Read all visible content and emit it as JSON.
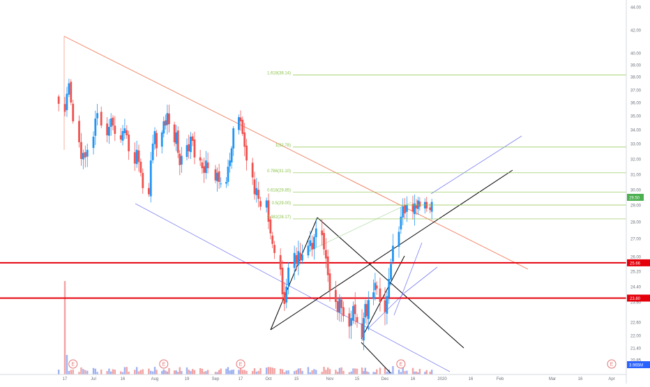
{
  "chart_data": {
    "type": "candlestick",
    "title": "",
    "ylim": [
      19.8,
      44.6
    ],
    "price_axis_ticks": [
      "44.00",
      "42.00",
      "40.00",
      "39.00",
      "38.00",
      "37.00",
      "36.00",
      "35.00",
      "34.00",
      "33.00",
      "32.00",
      "31.00",
      "30.00",
      "29.00",
      "28.00",
      "27.00",
      "26.00",
      "25.20",
      "24.40",
      "23.60",
      "22.60",
      "22.00",
      "21.40",
      "20.85"
    ],
    "time_axis_ticks": [
      {
        "label": "17",
        "date": "2019-06-17"
      },
      {
        "label": "Jul",
        "date": "2019-07-01"
      },
      {
        "label": "16",
        "date": "2019-07-16"
      },
      {
        "label": "Aug",
        "date": "2019-08-01"
      },
      {
        "label": "19",
        "date": "2019-08-19"
      },
      {
        "label": "Sep",
        "date": "2019-09-03"
      },
      {
        "label": "17",
        "date": "2019-09-17"
      },
      {
        "label": "Oct",
        "date": "2019-10-01"
      },
      {
        "label": "15",
        "date": "2019-10-15"
      },
      {
        "label": "Nov",
        "date": "2019-11-01"
      },
      {
        "label": "15",
        "date": "2019-11-15"
      },
      {
        "label": "Dec",
        "date": "2019-12-02"
      },
      {
        "label": "16",
        "date": "2019-12-16"
      },
      {
        "label": "2020",
        "date": "2020-01-02"
      },
      {
        "label": "16",
        "date": "2020-01-16"
      },
      {
        "label": "Feb",
        "date": "2020-02-03"
      },
      {
        "label": "Mar",
        "date": "2020-03-02"
      },
      {
        "label": "16",
        "date": "2020-03-16"
      },
      {
        "label": "Apr",
        "date": "2020-04-01"
      }
    ],
    "price_series": [
      {
        "date": "2019-06-14",
        "close": 35.9
      },
      {
        "date": "2019-06-17",
        "close": 35.3
      },
      {
        "date": "2019-06-18",
        "close": 36.7
      },
      {
        "date": "2019-06-19",
        "close": 37.5
      },
      {
        "date": "2019-06-20",
        "close": 36.0
      },
      {
        "date": "2019-06-21",
        "close": 34.6
      },
      {
        "date": "2019-06-24",
        "close": 33.1
      },
      {
        "date": "2019-06-25",
        "close": 32.0
      },
      {
        "date": "2019-06-26",
        "close": 32.4
      },
      {
        "date": "2019-06-27",
        "close": 32.1
      },
      {
        "date": "2019-06-28",
        "close": 32.6
      },
      {
        "date": "2019-07-01",
        "close": 33.5
      },
      {
        "date": "2019-07-02",
        "close": 34.8
      },
      {
        "date": "2019-07-03",
        "close": 35.2
      },
      {
        "date": "2019-07-05",
        "close": 34.3
      },
      {
        "date": "2019-07-08",
        "close": 33.6
      },
      {
        "date": "2019-07-09",
        "close": 34.2
      },
      {
        "date": "2019-07-10",
        "close": 34.8
      },
      {
        "date": "2019-07-11",
        "close": 34.3
      },
      {
        "date": "2019-07-12",
        "close": 33.7
      },
      {
        "date": "2019-07-15",
        "close": 33.3
      },
      {
        "date": "2019-07-16",
        "close": 33.9
      },
      {
        "date": "2019-07-17",
        "close": 34.1
      },
      {
        "date": "2019-07-18",
        "close": 33.6
      },
      {
        "date": "2019-07-19",
        "close": 32.5
      },
      {
        "date": "2019-07-22",
        "close": 31.7
      },
      {
        "date": "2019-07-23",
        "close": 32.6
      },
      {
        "date": "2019-07-24",
        "close": 31.8
      },
      {
        "date": "2019-07-25",
        "close": 31.1
      },
      {
        "date": "2019-07-26",
        "close": 30.1
      },
      {
        "date": "2019-07-29",
        "close": 29.7
      },
      {
        "date": "2019-07-30",
        "close": 31.9
      },
      {
        "date": "2019-07-31",
        "close": 33.0
      },
      {
        "date": "2019-08-01",
        "close": 33.9
      },
      {
        "date": "2019-08-02",
        "close": 32.7
      },
      {
        "date": "2019-08-05",
        "close": 33.8
      },
      {
        "date": "2019-08-06",
        "close": 34.6
      },
      {
        "date": "2019-08-07",
        "close": 34.3
      },
      {
        "date": "2019-08-08",
        "close": 35.2
      },
      {
        "date": "2019-08-09",
        "close": 34.4
      },
      {
        "date": "2019-08-12",
        "close": 33.1
      },
      {
        "date": "2019-08-13",
        "close": 33.8
      },
      {
        "date": "2019-08-14",
        "close": 32.4
      },
      {
        "date": "2019-08-15",
        "close": 31.6
      },
      {
        "date": "2019-08-16",
        "close": 32.2
      },
      {
        "date": "2019-08-19",
        "close": 32.9
      },
      {
        "date": "2019-08-20",
        "close": 32.5
      },
      {
        "date": "2019-08-21",
        "close": 33.5
      },
      {
        "date": "2019-08-22",
        "close": 33.2
      },
      {
        "date": "2019-08-23",
        "close": 32.1
      },
      {
        "date": "2019-08-26",
        "close": 31.9
      },
      {
        "date": "2019-08-27",
        "close": 31.4
      },
      {
        "date": "2019-08-28",
        "close": 31.1
      },
      {
        "date": "2019-08-29",
        "close": 31.9
      },
      {
        "date": "2019-08-30",
        "close": 31.4
      },
      {
        "date": "2019-09-03",
        "close": 30.6
      },
      {
        "date": "2019-09-04",
        "close": 31.1
      },
      {
        "date": "2019-09-05",
        "close": 30.5
      },
      {
        "date": "2019-09-06",
        "close": 30.4
      },
      {
        "date": "2019-09-09",
        "close": 30.5
      },
      {
        "date": "2019-09-10",
        "close": 31.5
      },
      {
        "date": "2019-09-11",
        "close": 31.9
      },
      {
        "date": "2019-09-12",
        "close": 32.7
      },
      {
        "date": "2019-09-13",
        "close": 34.1
      },
      {
        "date": "2019-09-16",
        "close": 34.9
      },
      {
        "date": "2019-09-17",
        "close": 34.6
      },
      {
        "date": "2019-09-18",
        "close": 33.7
      },
      {
        "date": "2019-09-19",
        "close": 32.8
      },
      {
        "date": "2019-09-20",
        "close": 31.9
      },
      {
        "date": "2019-09-23",
        "close": 30.8
      },
      {
        "date": "2019-09-24",
        "close": 29.7
      },
      {
        "date": "2019-09-25",
        "close": 30.1
      },
      {
        "date": "2019-09-26",
        "close": 29.4
      },
      {
        "date": "2019-09-27",
        "close": 28.9
      },
      {
        "date": "2019-09-30",
        "close": 29.3
      },
      {
        "date": "2019-10-01",
        "close": 28.0
      },
      {
        "date": "2019-10-02",
        "close": 27.3
      },
      {
        "date": "2019-10-03",
        "close": 26.7
      },
      {
        "date": "2019-10-04",
        "close": 26.2
      },
      {
        "date": "2019-10-07",
        "close": 25.3
      },
      {
        "date": "2019-10-08",
        "close": 24.0
      },
      {
        "date": "2019-10-09",
        "close": 23.5
      },
      {
        "date": "2019-10-10",
        "close": 24.4
      },
      {
        "date": "2019-10-11",
        "close": 25.4
      },
      {
        "date": "2019-10-14",
        "close": 26.2
      },
      {
        "date": "2019-10-15",
        "close": 25.6
      },
      {
        "date": "2019-10-16",
        "close": 26.3
      },
      {
        "date": "2019-10-17",
        "close": 25.8
      },
      {
        "date": "2019-10-18",
        "close": 26.1
      },
      {
        "date": "2019-10-21",
        "close": 26.6
      },
      {
        "date": "2019-10-22",
        "close": 26.9
      },
      {
        "date": "2019-10-23",
        "close": 26.4
      },
      {
        "date": "2019-10-24",
        "close": 27.1
      },
      {
        "date": "2019-10-25",
        "close": 27.6
      },
      {
        "date": "2019-10-28",
        "close": 27.2
      },
      {
        "date": "2019-10-29",
        "close": 26.4
      },
      {
        "date": "2019-10-30",
        "close": 25.9
      },
      {
        "date": "2019-10-31",
        "close": 25.0
      },
      {
        "date": "2019-11-01",
        "close": 24.2
      },
      {
        "date": "2019-11-04",
        "close": 23.6
      },
      {
        "date": "2019-11-05",
        "close": 23.1
      },
      {
        "date": "2019-11-06",
        "close": 23.8
      },
      {
        "date": "2019-11-07",
        "close": 23.3
      },
      {
        "date": "2019-11-08",
        "close": 22.9
      },
      {
        "date": "2019-11-11",
        "close": 22.4
      },
      {
        "date": "2019-11-12",
        "close": 22.8
      },
      {
        "date": "2019-11-13",
        "close": 23.4
      },
      {
        "date": "2019-11-14",
        "close": 23.0
      },
      {
        "date": "2019-11-15",
        "close": 22.6
      },
      {
        "date": "2019-11-18",
        "close": 21.9
      },
      {
        "date": "2019-11-19",
        "close": 22.8
      },
      {
        "date": "2019-11-20",
        "close": 23.5
      },
      {
        "date": "2019-11-21",
        "close": 22.9
      },
      {
        "date": "2019-11-22",
        "close": 23.7
      },
      {
        "date": "2019-11-25",
        "close": 24.1
      },
      {
        "date": "2019-11-26",
        "close": 24.6
      },
      {
        "date": "2019-11-27",
        "close": 24.3
      },
      {
        "date": "2019-11-29",
        "close": 23.6
      },
      {
        "date": "2019-12-02",
        "close": 23.1
      },
      {
        "date": "2019-12-03",
        "close": 23.9
      },
      {
        "date": "2019-12-04",
        "close": 24.8
      },
      {
        "date": "2019-12-05",
        "close": 25.6
      },
      {
        "date": "2019-12-06",
        "close": 26.6
      },
      {
        "date": "2019-12-09",
        "close": 27.4
      },
      {
        "date": "2019-12-10",
        "close": 28.3
      },
      {
        "date": "2019-12-11",
        "close": 28.9
      },
      {
        "date": "2019-12-12",
        "close": 28.5
      },
      {
        "date": "2019-12-13",
        "close": 29.0
      },
      {
        "date": "2019-12-16",
        "close": 28.6
      },
      {
        "date": "2019-12-17",
        "close": 29.1
      },
      {
        "date": "2019-12-18",
        "close": 28.8
      },
      {
        "date": "2019-12-19",
        "close": 29.3
      },
      {
        "date": "2019-12-20",
        "close": 28.9
      },
      {
        "date": "2019-12-23",
        "close": 29.2
      },
      {
        "date": "2019-12-24",
        "close": 28.8
      },
      {
        "date": "2019-12-26",
        "close": 28.7
      },
      {
        "date": "2019-12-27",
        "close": 29.2
      }
    ],
    "fibonacci_levels": [
      {
        "label": "1.618(38.14)",
        "value": 38.14
      },
      {
        "label": "1(32.78)",
        "value": 32.78
      },
      {
        "label": "0.786(31.10)",
        "value": 31.1
      },
      {
        "label": "0.618(29.85)",
        "value": 29.85
      },
      {
        "label": "0.5(29.00)",
        "value": 29.0
      },
      {
        "label": "0.382(28.17)",
        "value": 28.17
      }
    ],
    "horizontal_lines": [
      {
        "label": "25.66",
        "value": 25.66,
        "color": "#e4000b"
      },
      {
        "label": "23.80",
        "value": 23.8,
        "color": "#e4000b"
      }
    ],
    "current_price": {
      "label": "29.50",
      "value": 29.5,
      "color": "#4caf50"
    },
    "volume": {
      "label": "3.965M",
      "color": "#2962ff"
    },
    "earnings_markers": [
      {
        "date": "2019-06-21",
        "text": "E"
      },
      {
        "date": "2019-08-06",
        "text": "E"
      },
      {
        "date": "2019-09-17",
        "text": "E"
      },
      {
        "date": "2019-12-10",
        "text": "E"
      },
      {
        "date": "2020-04-01",
        "text": "E"
      }
    ],
    "colors": {
      "up": "#2196f3",
      "down": "#ef5350",
      "fib": "#8bc34a",
      "level": "#e4000b",
      "channel": "#7b7ff0",
      "trend": "#ef7d5f",
      "black": "#000000"
    }
  }
}
